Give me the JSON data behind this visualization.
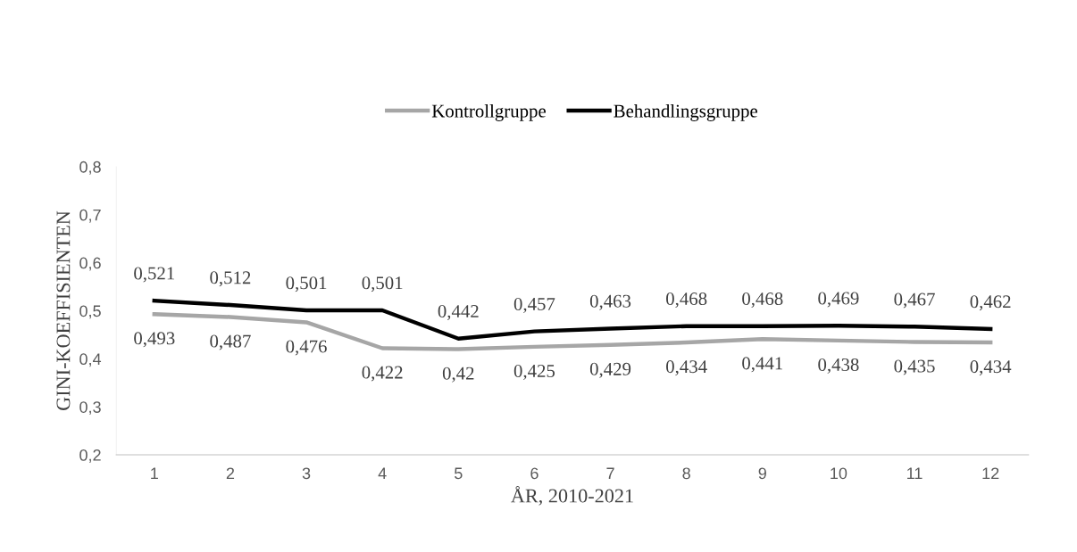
{
  "chart_data": {
    "type": "line",
    "xlabel": "ÅR, 2010-2021",
    "ylabel": "GINI-KOEFFISIENTEN",
    "categories": [
      "1",
      "2",
      "3",
      "4",
      "5",
      "6",
      "7",
      "8",
      "9",
      "10",
      "11",
      "12"
    ],
    "series": [
      {
        "name": "Kontrollgruppe",
        "color": "#a6a6a6",
        "values": [
          0.493,
          0.487,
          0.476,
          0.422,
          0.42,
          0.425,
          0.429,
          0.434,
          0.441,
          0.438,
          0.435,
          0.434
        ],
        "value_labels": [
          "0,493",
          "0,487",
          "0,476",
          "0,422",
          "0,42",
          "0,425",
          "0,429",
          "0,434",
          "0,441",
          "0,438",
          "0,435",
          "0,434"
        ]
      },
      {
        "name": "Behandlingsgruppe",
        "color": "#000000",
        "values": [
          0.521,
          0.512,
          0.501,
          0.501,
          0.442,
          0.457,
          0.463,
          0.468,
          0.468,
          0.469,
          0.467,
          0.462
        ],
        "value_labels": [
          "0,521",
          "0,512",
          "0,501",
          "0,501",
          "0,442",
          "0,457",
          "0,463",
          "0,468",
          "0,468",
          "0,469",
          "0,467",
          "0,462"
        ]
      }
    ],
    "ylim": [
      0.2,
      0.8
    ],
    "yticks": [
      {
        "value": 0.2,
        "label": "0,2"
      },
      {
        "value": 0.3,
        "label": "0,3"
      },
      {
        "value": 0.4,
        "label": "0,4"
      },
      {
        "value": 0.5,
        "label": "0,5"
      },
      {
        "value": 0.6,
        "label": "0,6"
      },
      {
        "value": 0.7,
        "label": "0,7"
      },
      {
        "value": 0.8,
        "label": "0,8"
      }
    ],
    "legend": "top",
    "grid": false,
    "marker": "none",
    "line_style": "solid"
  }
}
